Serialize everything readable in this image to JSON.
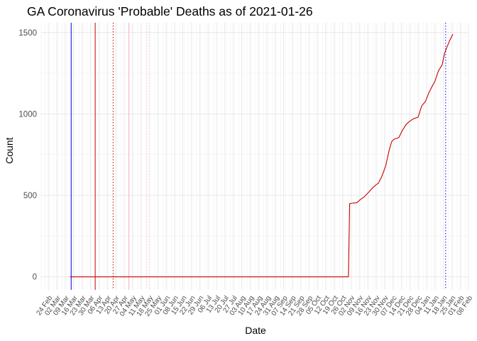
{
  "chart_data": {
    "type": "line",
    "title": "GA Coronavirus 'Probable' Deaths as of 2021-01-26",
    "xlabel": "Date",
    "ylabel": "Count",
    "x_type": "date",
    "xlim": [
      "2020-02-18",
      "2021-02-08"
    ],
    "ylim": [
      -80,
      1560
    ],
    "yticks": [
      0,
      500,
      1000,
      1500
    ],
    "xtick_dates": [
      "2020-02-24",
      "2020-03-02",
      "2020-03-09",
      "2020-03-16",
      "2020-03-23",
      "2020-03-30",
      "2020-04-06",
      "2020-04-13",
      "2020-04-20",
      "2020-04-27",
      "2020-05-04",
      "2020-05-11",
      "2020-05-18",
      "2020-05-25",
      "2020-06-01",
      "2020-06-08",
      "2020-06-15",
      "2020-06-22",
      "2020-06-29",
      "2020-07-06",
      "2020-07-13",
      "2020-07-20",
      "2020-07-27",
      "2020-08-03",
      "2020-08-10",
      "2020-08-17",
      "2020-08-24",
      "2020-08-31",
      "2020-09-07",
      "2020-09-14",
      "2020-09-21",
      "2020-09-28",
      "2020-10-05",
      "2020-10-12",
      "2020-10-19",
      "2020-10-26",
      "2020-11-02",
      "2020-11-09",
      "2020-11-16",
      "2020-11-23",
      "2020-11-30",
      "2020-12-07",
      "2020-12-14",
      "2020-12-21",
      "2020-12-28",
      "2021-01-04",
      "2021-01-11",
      "2021-01-18",
      "2021-01-25",
      "2021-02-01",
      "2021-02-08"
    ],
    "xtick_labels": [
      "24 Feb",
      "02 Mar",
      "09 Mar",
      "16 Mar",
      "23 Mar",
      "30 Mar",
      "06 Apr",
      "13 Apr",
      "20 Apr",
      "27 Apr",
      "04 May",
      "11 May",
      "18 May",
      "25 May",
      "01 Jun",
      "08 Jun",
      "15 Jun",
      "22 Jun",
      "29 Jun",
      "06 Jul",
      "13 Jul",
      "20 Jul",
      "27 Jul",
      "03 Aug",
      "10 Aug",
      "17 Aug",
      "24 Aug",
      "31 Aug",
      "07 Sep",
      "14 Sep",
      "21 Sep",
      "28 Sep",
      "05 Oct",
      "12 Oct",
      "19 Oct",
      "26 Oct",
      "02 Nov",
      "09 Nov",
      "16 Nov",
      "23 Nov",
      "30 Nov",
      "07 Dec",
      "14 Dec",
      "21 Dec",
      "28 Dec",
      "04 Jan",
      "11 Jan",
      "18 Jan",
      "25 Jan",
      "01 Feb",
      "08 Feb"
    ],
    "grid": true,
    "series": [
      {
        "color": "#cc0000",
        "points": [
          [
            "2020-03-13",
            0
          ],
          [
            "2020-10-31",
            0
          ],
          [
            "2020-11-01",
            450
          ],
          [
            "2020-11-07",
            455
          ],
          [
            "2020-11-10",
            475
          ],
          [
            "2020-11-13",
            490
          ],
          [
            "2020-11-17",
            520
          ],
          [
            "2020-11-20",
            545
          ],
          [
            "2020-11-23",
            565
          ],
          [
            "2020-11-25",
            575
          ],
          [
            "2020-11-28",
            620
          ],
          [
            "2020-12-01",
            680
          ],
          [
            "2020-12-04",
            780
          ],
          [
            "2020-12-06",
            830
          ],
          [
            "2020-12-08",
            845
          ],
          [
            "2020-12-12",
            855
          ],
          [
            "2020-12-15",
            900
          ],
          [
            "2020-12-18",
            935
          ],
          [
            "2020-12-21",
            955
          ],
          [
            "2020-12-24",
            970
          ],
          [
            "2020-12-28",
            980
          ],
          [
            "2020-12-31",
            1050
          ],
          [
            "2021-01-03",
            1075
          ],
          [
            "2021-01-06",
            1130
          ],
          [
            "2021-01-08",
            1160
          ],
          [
            "2021-01-11",
            1200
          ],
          [
            "2021-01-14",
            1265
          ],
          [
            "2021-01-17",
            1300
          ],
          [
            "2021-01-19",
            1370
          ],
          [
            "2021-01-21",
            1410
          ],
          [
            "2021-01-23",
            1445
          ],
          [
            "2021-01-25",
            1475
          ],
          [
            "2021-01-26",
            1490
          ]
        ]
      }
    ],
    "reference_lines": [
      {
        "date": "2020-03-14",
        "color": "#0000ff",
        "style": "solid"
      },
      {
        "date": "2020-04-03",
        "color": "#cc0000",
        "style": "solid"
      },
      {
        "date": "2020-04-18",
        "color": "#cc0000",
        "style": "dotted"
      },
      {
        "date": "2020-05-01",
        "color": "#ffb3c1",
        "style": "solid"
      },
      {
        "date": "2020-05-16",
        "color": "#ffb3c1",
        "style": "dotted"
      },
      {
        "date": "2021-01-20",
        "color": "#0000ff",
        "style": "dotted"
      }
    ]
  }
}
